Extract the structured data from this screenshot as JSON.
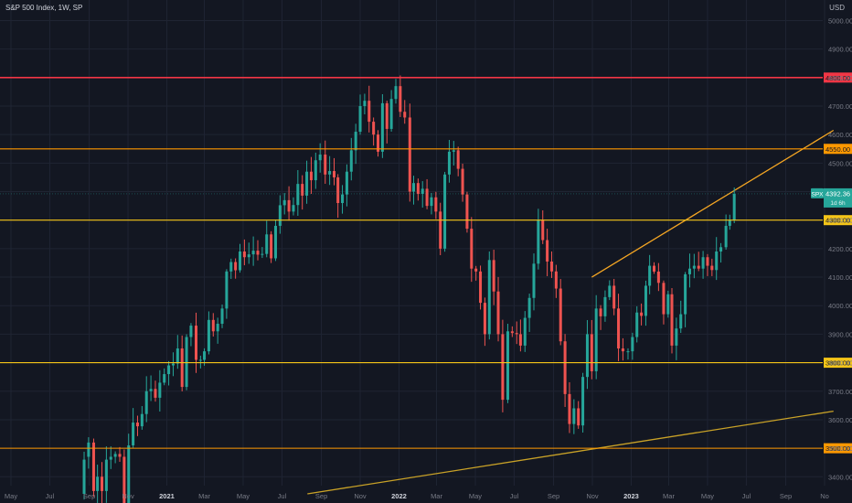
{
  "header": {
    "title": "S&P 500 Index, 1W, SP",
    "currency": "USD"
  },
  "colors": {
    "background": "#131722",
    "grid": "#1f2433",
    "up": "#26a69a",
    "down": "#ef5350",
    "resistance_red": "#f23645",
    "level_orange": "#ff9800",
    "level_yellow": "#f5c518",
    "trendline": "#f5a623",
    "axis_text": "#787b86"
  },
  "chart_data": {
    "type": "candlestick",
    "title": "S&P 500 Index, 1W, SP",
    "ylim": [
      3340,
      5040
    ],
    "y_ticks": [
      3400,
      3500,
      3600,
      3700,
      3800,
      3900,
      4000,
      4100,
      4200,
      4300,
      4400,
      4500,
      4600,
      4700,
      4800,
      4900,
      5000
    ],
    "x_ticks": [
      "May",
      "Jul",
      "Sep",
      "Nov",
      "2021",
      "Mar",
      "May",
      "Jul",
      "Sep",
      "Nov",
      "2022",
      "Mar",
      "May",
      "Jul",
      "Sep",
      "Nov",
      "2023",
      "Mar",
      "May",
      "Jul",
      "Sep",
      "No"
    ],
    "x_tick_dates": [
      "2020-05-01",
      "2020-07-01",
      "2020-09-01",
      "2020-11-01",
      "2021-01-01",
      "2021-03-01",
      "2021-05-01",
      "2021-07-01",
      "2021-09-01",
      "2021-11-01",
      "2022-01-01",
      "2022-03-01",
      "2022-05-01",
      "2022-07-01",
      "2022-09-01",
      "2022-11-01",
      "2023-01-01",
      "2023-03-01",
      "2023-05-01",
      "2023-07-01",
      "2023-09-01",
      "2023-11-01"
    ],
    "levels": [
      {
        "value": 4800,
        "label": "4800.00",
        "color": "#f23645"
      },
      {
        "value": 4550,
        "label": "4550.00",
        "color": "#ff9800"
      },
      {
        "value": 4300,
        "label": "4300.00",
        "color": "#f5c518"
      },
      {
        "value": 3800,
        "label": "3800.00",
        "color": "#f5c518"
      },
      {
        "value": 3500,
        "label": "3500.00",
        "color": "#ff9800"
      }
    ],
    "trendlines": [
      {
        "points": [
          [
            "2022-10-31",
            4100
          ],
          [
            "2023-11-15",
            4615
          ]
        ],
        "color": "#f5a623"
      },
      {
        "points": [
          [
            "2021-08-10",
            3340
          ],
          [
            "2023-11-15",
            3630
          ]
        ],
        "color": "#c9a227"
      }
    ],
    "last_price": {
      "symbol": "SPX",
      "value": "4392.36",
      "countdown": "1d 6h",
      "price": 4392.36
    },
    "anchors": [
      [
        "2020-08-24",
        3340,
        3460
      ],
      [
        "2020-08-31",
        3470,
        3520
      ],
      [
        "2020-09-08",
        3520,
        3350
      ],
      [
        "2020-09-14",
        3350,
        3400
      ],
      [
        "2020-09-28",
        3350,
        3460
      ],
      [
        "2020-10-12",
        3470,
        3480
      ],
      [
        "2020-10-26",
        3470,
        3300
      ],
      [
        "2020-11-02",
        3300,
        3510
      ],
      [
        "2020-11-09",
        3510,
        3590
      ],
      [
        "2020-11-30",
        3620,
        3700
      ],
      [
        "2020-12-28",
        3730,
        3760
      ],
      [
        "2021-01-25",
        3850,
        3715
      ],
      [
        "2021-02-01",
        3715,
        3890
      ],
      [
        "2021-02-16",
        3930,
        3810
      ],
      [
        "2021-03-01",
        3810,
        3840
      ],
      [
        "2021-03-15",
        3950,
        3910
      ],
      [
        "2021-04-05",
        3990,
        4120
      ],
      [
        "2021-05-03",
        4190,
        4170
      ],
      [
        "2021-05-10",
        4170,
        4180
      ],
      [
        "2021-06-14",
        4250,
        4166
      ],
      [
        "2021-06-21",
        4166,
        4280
      ],
      [
        "2021-07-12",
        4370,
        4330
      ],
      [
        "2021-08-16",
        4470,
        4440
      ],
      [
        "2021-08-23",
        4440,
        4510
      ],
      [
        "2021-09-07",
        4530,
        4460
      ],
      [
        "2021-09-27",
        4450,
        4360
      ],
      [
        "2021-10-04",
        4360,
        4390
      ],
      [
        "2021-10-11",
        4390,
        4470
      ],
      [
        "2021-10-18",
        4470,
        4545
      ],
      [
        "2021-11-01",
        4610,
        4700
      ],
      [
        "2021-11-29",
        4600,
        4540
      ],
      [
        "2021-12-13",
        4710,
        4620
      ],
      [
        "2021-12-27",
        4725,
        4770
      ],
      [
        "2022-01-03",
        4770,
        4680
      ],
      [
        "2022-01-10",
        4680,
        4660
      ],
      [
        "2022-01-18",
        4660,
        4400
      ],
      [
        "2022-01-24",
        4400,
        4430
      ],
      [
        "2022-02-14",
        4410,
        4350
      ],
      [
        "2022-02-28",
        4380,
        4330
      ],
      [
        "2022-03-07",
        4330,
        4200
      ],
      [
        "2022-03-14",
        4200,
        4460
      ],
      [
        "2022-03-28",
        4540,
        4545
      ],
      [
        "2022-04-04",
        4545,
        4480
      ],
      [
        "2022-04-11",
        4480,
        4390
      ],
      [
        "2022-04-25",
        4270,
        4130
      ],
      [
        "2022-05-02",
        4130,
        4120
      ],
      [
        "2022-05-16",
        4010,
        3900
      ],
      [
        "2022-05-23",
        3900,
        4160
      ],
      [
        "2022-06-13",
        3900,
        3670
      ],
      [
        "2022-06-21",
        3670,
        3910
      ],
      [
        "2022-07-11",
        3900,
        3860
      ],
      [
        "2022-08-15",
        4300,
        4230
      ],
      [
        "2022-09-12",
        4060,
        3875
      ],
      [
        "2022-09-19",
        3875,
        3690
      ],
      [
        "2022-09-26",
        3690,
        3585
      ],
      [
        "2022-10-03",
        3585,
        3640
      ],
      [
        "2022-10-10",
        3640,
        3580
      ],
      [
        "2022-10-17",
        3580,
        3750
      ],
      [
        "2022-10-31",
        3900,
        3770
      ],
      [
        "2022-11-07",
        3770,
        3990
      ],
      [
        "2022-11-28",
        4030,
        4070
      ],
      [
        "2022-12-12",
        3990,
        3850
      ],
      [
        "2022-12-27",
        3840,
        3840
      ],
      [
        "2023-01-03",
        3840,
        3890
      ],
      [
        "2023-01-30",
        4070,
        4140
      ],
      [
        "2023-02-21",
        4080,
        3970
      ],
      [
        "2023-03-06",
        4040,
        3860
      ],
      [
        "2023-03-13",
        3860,
        3920
      ],
      [
        "2023-03-20",
        3920,
        3970
      ],
      [
        "2023-03-27",
        3970,
        4110
      ],
      [
        "2023-04-10",
        4130,
        4140
      ],
      [
        "2023-04-17",
        4140,
        4130
      ],
      [
        "2023-04-24",
        4130,
        4170
      ],
      [
        "2023-05-01",
        4170,
        4140
      ],
      [
        "2023-05-08",
        4140,
        4125
      ],
      [
        "2023-05-15",
        4125,
        4190
      ],
      [
        "2023-05-22",
        4190,
        4205
      ],
      [
        "2023-05-30",
        4205,
        4280
      ],
      [
        "2023-06-05",
        4280,
        4300
      ],
      [
        "2023-06-12",
        4300,
        4392
      ]
    ]
  }
}
